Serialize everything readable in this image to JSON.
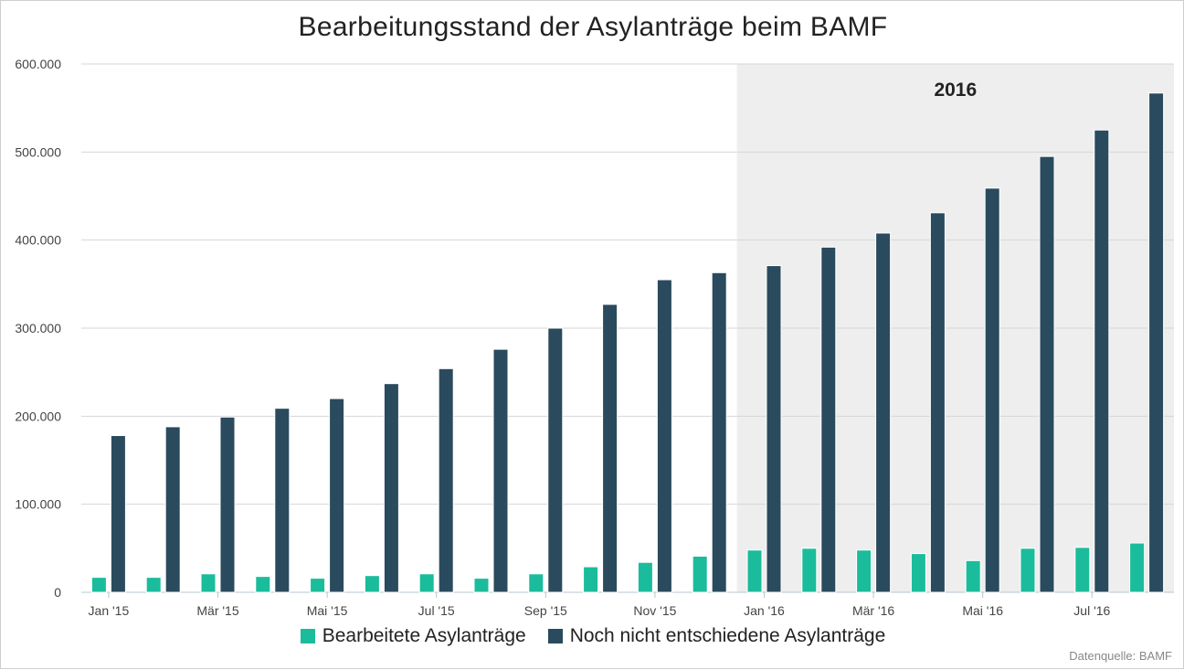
{
  "chart_data": {
    "type": "bar",
    "title": "Bearbeitungsstand der Asylanträge beim BAMF",
    "categories": [
      "Jan '15",
      "Feb '15",
      "Mär '15",
      "Apr '15",
      "Mai '15",
      "Jun '15",
      "Jul '15",
      "Aug '15",
      "Sep '15",
      "Okt '15",
      "Nov '15",
      "Dez '15",
      "Jan '16",
      "Feb '16",
      "Mär '16",
      "Apr '16",
      "Mai '16",
      "Jun '16",
      "Jul '16",
      "Aug '16"
    ],
    "x_tick_labels": [
      "Jan '15",
      "Mär '15",
      "Mai '15",
      "Jul '15",
      "Sep '15",
      "Nov '15",
      "Jan '16",
      "Mär '16",
      "Mai '16",
      "Jul '16"
    ],
    "y_tick_labels": [
      "0",
      "100.000",
      "200.000",
      "300.000",
      "400.000",
      "500.000",
      "600.000"
    ],
    "ylim": [
      0,
      600000
    ],
    "grid": true,
    "legend_position": "bottom",
    "series": [
      {
        "name": "Bearbeitete Asylanträge",
        "color": "#1bbc9b",
        "values": [
          17000,
          17000,
          21000,
          18000,
          16000,
          19000,
          21000,
          16000,
          21000,
          29000,
          34000,
          41000,
          48000,
          50000,
          48000,
          44000,
          36000,
          50000,
          51000,
          56000
        ]
      },
      {
        "name": "Noch nicht entschiedene Asylanträge",
        "color": "#2a4a5e",
        "values": [
          178000,
          188000,
          199000,
          209000,
          220000,
          237000,
          254000,
          276000,
          300000,
          327000,
          355000,
          363000,
          371000,
          392000,
          408000,
          431000,
          459000,
          495000,
          525000,
          567000
        ]
      }
    ],
    "annotations": [
      {
        "text": "2016",
        "from_category": "Jan '16",
        "to_category": "Aug '16",
        "band_color": "#eeeeee"
      }
    ],
    "source": "Datenquelle: BAMF"
  }
}
